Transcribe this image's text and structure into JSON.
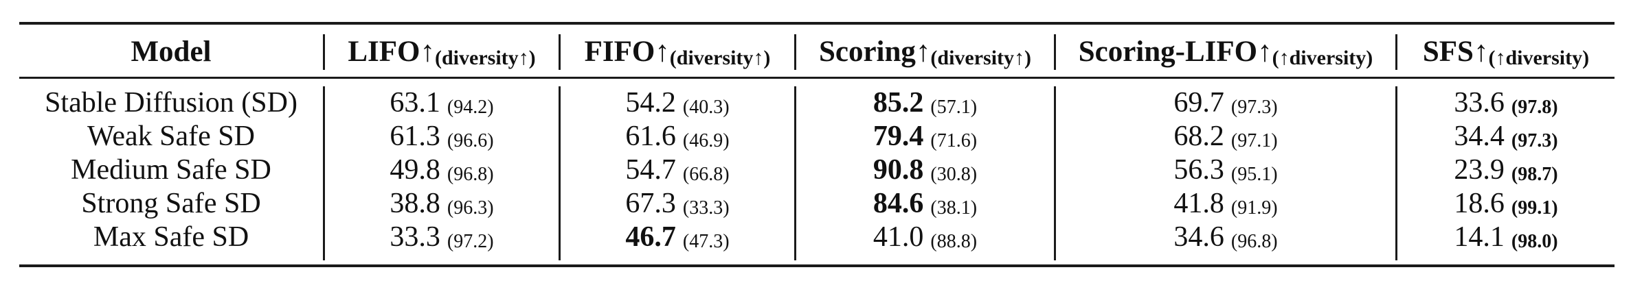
{
  "table": {
    "headers": [
      {
        "main": "Model",
        "sub": ""
      },
      {
        "main": "LIFO↑",
        "sub": "(diversity↑)"
      },
      {
        "main": "FIFO↑",
        "sub": "(diversity↑)"
      },
      {
        "main": "Scoring↑",
        "sub": "(diversity↑)"
      },
      {
        "main": "Scoring-LIFO↑",
        "sub": "(↑diversity)"
      },
      {
        "main": "SFS↑",
        "sub": "(↑diversity)"
      }
    ],
    "rows": [
      {
        "model": "Stable Diffusion (SD)",
        "cells": [
          {
            "value": "63.1",
            "diversity": "(94.2)",
            "value_bold": false,
            "diversity_bold": false
          },
          {
            "value": "54.2",
            "diversity": "(40.3)",
            "value_bold": false,
            "diversity_bold": false
          },
          {
            "value": "85.2",
            "diversity": "(57.1)",
            "value_bold": true,
            "diversity_bold": false
          },
          {
            "value": "69.7",
            "diversity": "(97.3)",
            "value_bold": false,
            "diversity_bold": false
          },
          {
            "value": "33.6",
            "diversity": "(97.8)",
            "value_bold": false,
            "diversity_bold": true
          }
        ]
      },
      {
        "model": "Weak Safe SD",
        "cells": [
          {
            "value": "61.3",
            "diversity": "(96.6)",
            "value_bold": false,
            "diversity_bold": false
          },
          {
            "value": "61.6",
            "diversity": "(46.9)",
            "value_bold": false,
            "diversity_bold": false
          },
          {
            "value": "79.4",
            "diversity": "(71.6)",
            "value_bold": true,
            "diversity_bold": false
          },
          {
            "value": "68.2",
            "diversity": "(97.1)",
            "value_bold": false,
            "diversity_bold": false
          },
          {
            "value": "34.4",
            "diversity": "(97.3)",
            "value_bold": false,
            "diversity_bold": true
          }
        ]
      },
      {
        "model": "Medium Safe SD",
        "cells": [
          {
            "value": "49.8",
            "diversity": "(96.8)",
            "value_bold": false,
            "diversity_bold": false
          },
          {
            "value": "54.7",
            "diversity": "(66.8)",
            "value_bold": false,
            "diversity_bold": false
          },
          {
            "value": "90.8",
            "diversity": "(30.8)",
            "value_bold": true,
            "diversity_bold": false
          },
          {
            "value": "56.3",
            "diversity": "(95.1)",
            "value_bold": false,
            "diversity_bold": false
          },
          {
            "value": "23.9",
            "diversity": "(98.7)",
            "value_bold": false,
            "diversity_bold": true
          }
        ]
      },
      {
        "model": "Strong Safe SD",
        "cells": [
          {
            "value": "38.8",
            "diversity": "(96.3)",
            "value_bold": false,
            "diversity_bold": false
          },
          {
            "value": "67.3",
            "diversity": "(33.3)",
            "value_bold": false,
            "diversity_bold": false
          },
          {
            "value": "84.6",
            "diversity": "(38.1)",
            "value_bold": true,
            "diversity_bold": false
          },
          {
            "value": "41.8",
            "diversity": "(91.9)",
            "value_bold": false,
            "diversity_bold": false
          },
          {
            "value": "18.6",
            "diversity": "(99.1)",
            "value_bold": false,
            "diversity_bold": true
          }
        ]
      },
      {
        "model": "Max Safe SD",
        "cells": [
          {
            "value": "33.3",
            "diversity": "(97.2)",
            "value_bold": false,
            "diversity_bold": false
          },
          {
            "value": "46.7",
            "diversity": "(47.3)",
            "value_bold": true,
            "diversity_bold": false
          },
          {
            "value": "41.0",
            "diversity": "(88.8)",
            "value_bold": false,
            "diversity_bold": false
          },
          {
            "value": "34.6",
            "diversity": "(96.8)",
            "value_bold": false,
            "diversity_bold": false
          },
          {
            "value": "14.1",
            "diversity": "(98.0)",
            "value_bold": false,
            "diversity_bold": true
          }
        ]
      }
    ]
  }
}
